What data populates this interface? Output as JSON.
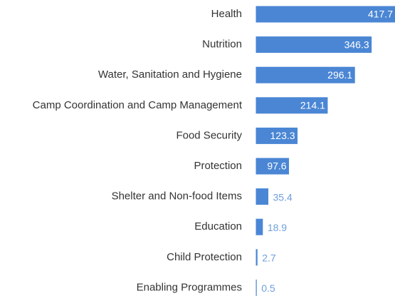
{
  "chart_data": {
    "type": "bar",
    "orientation": "horizontal",
    "categories": [
      "Health",
      "Nutrition",
      "Water, Sanitation and Hygiene",
      "Camp Coordination and Camp Management",
      "Food Security",
      "Protection",
      "Shelter and Non-food Items",
      "Education",
      "Child Protection",
      "Enabling Programmes"
    ],
    "values": [
      417.7,
      346.3,
      296.1,
      214.1,
      123.3,
      97.6,
      35.4,
      18.9,
      2.7,
      0.5
    ],
    "color": "#4a86d4"
  }
}
